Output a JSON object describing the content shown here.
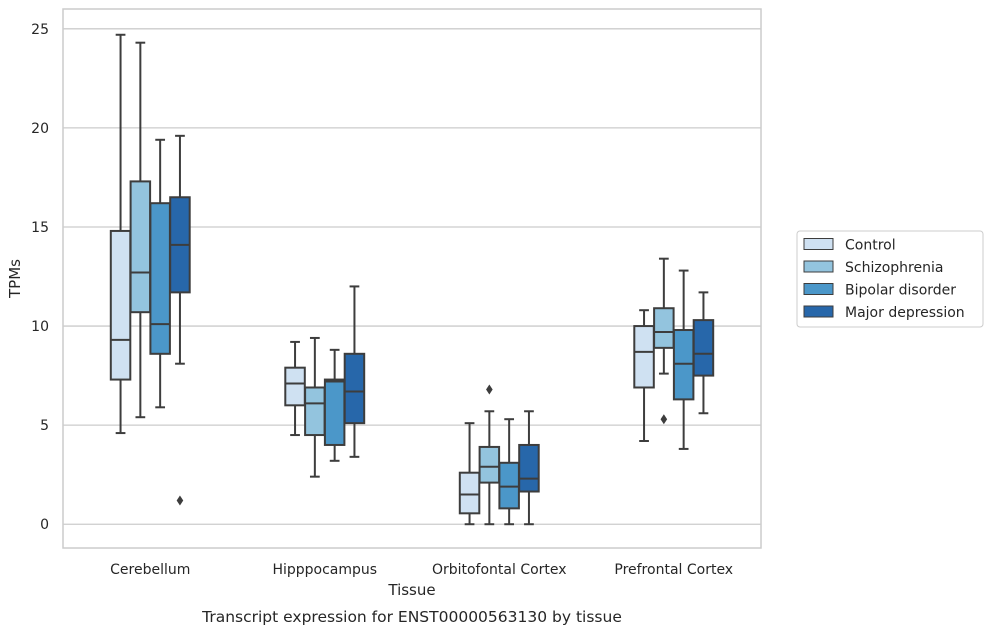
{
  "chart_data": {
    "type": "box",
    "title": "Transcript expression for ENST00000563130 by tissue",
    "xlabel": "Tissue",
    "ylabel": "TPMs",
    "ylim": [
      -1.2,
      26
    ],
    "yticks": [
      0,
      5,
      10,
      15,
      20,
      25
    ],
    "grid": true,
    "legend_position": "right",
    "categories": [
      "Cerebellum",
      "Hipppocampus",
      "Orbitofontal Cortex",
      "Prefrontal Cortex"
    ],
    "series": [
      {
        "name": "Control",
        "color": "#cfe1f2",
        "boxes": [
          {
            "whislo": 4.6,
            "q1": 7.3,
            "med": 9.3,
            "q3": 14.8,
            "whishi": 24.7,
            "fliers": []
          },
          {
            "whislo": 4.5,
            "q1": 6.0,
            "med": 7.1,
            "q3": 7.9,
            "whishi": 9.2,
            "fliers": []
          },
          {
            "whislo": 0.0,
            "q1": 0.55,
            "med": 1.5,
            "q3": 2.6,
            "whishi": 5.1,
            "fliers": []
          },
          {
            "whislo": 4.2,
            "q1": 6.9,
            "med": 8.7,
            "q3": 10.0,
            "whishi": 10.8,
            "fliers": []
          }
        ]
      },
      {
        "name": "Schizophrenia",
        "color": "#93c4de",
        "boxes": [
          {
            "whislo": 5.4,
            "q1": 10.7,
            "med": 12.7,
            "q3": 17.3,
            "whishi": 24.3,
            "fliers": []
          },
          {
            "whislo": 2.4,
            "q1": 4.5,
            "med": 6.1,
            "q3": 6.9,
            "whishi": 9.4,
            "fliers": []
          },
          {
            "whislo": 0.0,
            "q1": 2.1,
            "med": 2.9,
            "q3": 3.9,
            "whishi": 5.7,
            "fliers": [
              6.8
            ]
          },
          {
            "whislo": 7.6,
            "q1": 8.9,
            "med": 9.7,
            "q3": 10.9,
            "whishi": 13.4,
            "fliers": [
              5.3
            ]
          }
        ]
      },
      {
        "name": "Bipolar disorder",
        "color": "#4b97c9",
        "boxes": [
          {
            "whislo": 5.9,
            "q1": 8.6,
            "med": 10.1,
            "q3": 16.2,
            "whishi": 19.4,
            "fliers": []
          },
          {
            "whislo": 3.2,
            "q1": 4.0,
            "med": 7.2,
            "q3": 7.3,
            "whishi": 8.8,
            "fliers": []
          },
          {
            "whislo": 0.0,
            "q1": 0.8,
            "med": 1.9,
            "q3": 3.1,
            "whishi": 5.3,
            "fliers": []
          },
          {
            "whislo": 3.8,
            "q1": 6.3,
            "med": 8.1,
            "q3": 9.8,
            "whishi": 12.8,
            "fliers": []
          }
        ]
      },
      {
        "name": "Major depression",
        "color": "#2767aa",
        "boxes": [
          {
            "whislo": 8.1,
            "q1": 11.7,
            "med": 14.1,
            "q3": 16.5,
            "whishi": 19.6,
            "fliers": [
              1.2
            ]
          },
          {
            "whislo": 3.4,
            "q1": 5.1,
            "med": 6.7,
            "q3": 8.6,
            "whishi": 12.0,
            "fliers": []
          },
          {
            "whislo": 0.0,
            "q1": 1.65,
            "med": 2.3,
            "q3": 4.0,
            "whishi": 5.7,
            "fliers": []
          },
          {
            "whislo": 5.6,
            "q1": 7.5,
            "med": 8.6,
            "q3": 10.3,
            "whishi": 11.7,
            "fliers": []
          }
        ]
      }
    ]
  }
}
